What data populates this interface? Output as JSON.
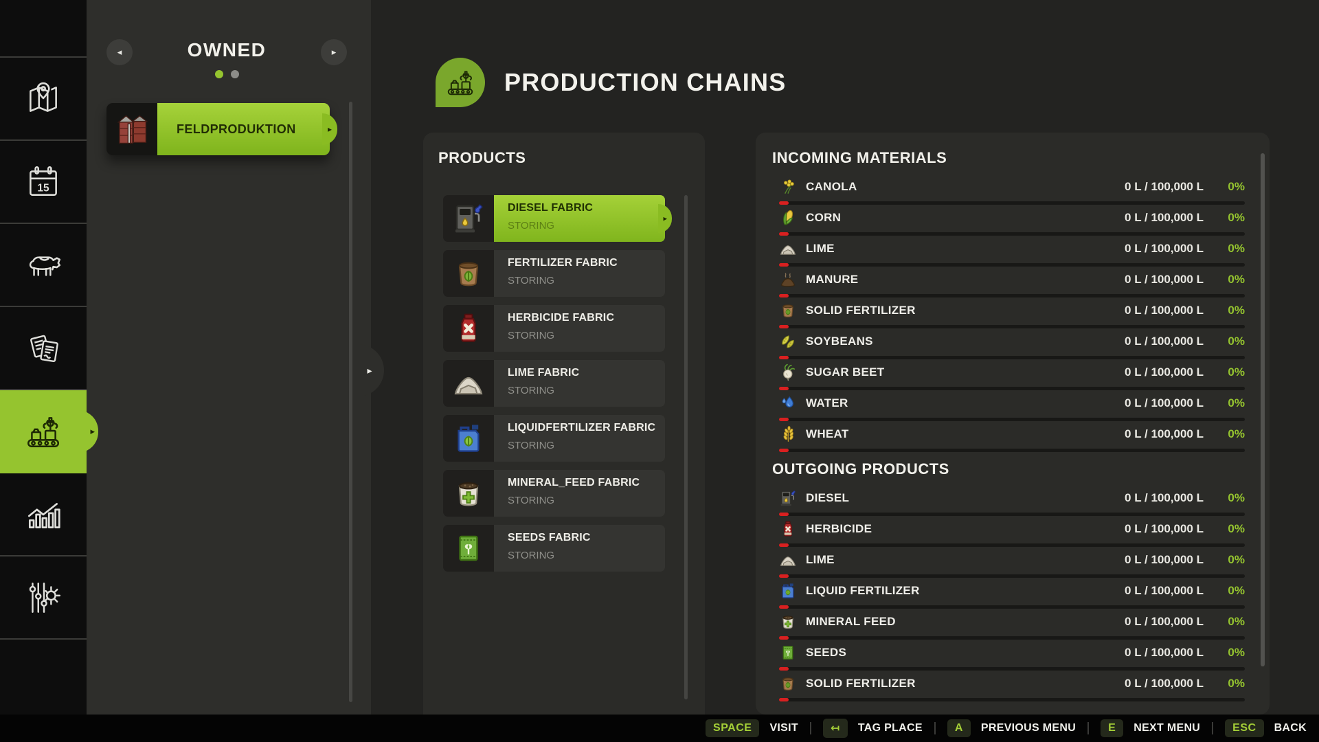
{
  "app": {
    "title": "PRODUCTION CHAINS"
  },
  "colors": {
    "accent": "#95c42f",
    "alert": "#d92020"
  },
  "sidebar": {
    "items": [
      {
        "name": "map",
        "icon": "map-icon"
      },
      {
        "name": "calendar",
        "icon": "calendar-icon",
        "day": "15"
      },
      {
        "name": "animals",
        "icon": "cow-icon"
      },
      {
        "name": "contracts",
        "icon": "documents-icon"
      },
      {
        "name": "production",
        "icon": "production-icon",
        "active": true
      },
      {
        "name": "statistics",
        "icon": "chart-icon"
      },
      {
        "name": "settings",
        "icon": "sliders-gear-icon"
      }
    ]
  },
  "owned_panel": {
    "title": "OWNED",
    "prev_arrow": "◂",
    "next_arrow": "▸",
    "pages": [
      {
        "active": true
      },
      {
        "active": false
      }
    ],
    "items": [
      {
        "label": "FELDPRODUKTION",
        "icon": "silo-icon",
        "arrow": "▸"
      }
    ]
  },
  "products_panel": {
    "heading": "PRODUCTS",
    "items": [
      {
        "label": "DIESEL FABRIC",
        "status": "STORING",
        "icon": "fuel-pump-icon",
        "selected": true,
        "arrow": "▸"
      },
      {
        "label": "FERTILIZER FABRIC",
        "status": "STORING",
        "icon": "fertilizer-bag-icon"
      },
      {
        "label": "HERBICIDE FABRIC",
        "status": "STORING",
        "icon": "herbicide-bottle-icon"
      },
      {
        "label": "LIME FABRIC",
        "status": "STORING",
        "icon": "lime-pile-icon"
      },
      {
        "label": "LIQUIDFERTILIZER FABRIC",
        "status": "STORING",
        "icon": "liquid-fertilizer-icon"
      },
      {
        "label": "MINERAL_FEED FABRIC",
        "status": "STORING",
        "icon": "mineral-feed-icon"
      },
      {
        "label": "SEEDS FABRIC",
        "status": "STORING",
        "icon": "seeds-packet-icon"
      }
    ]
  },
  "materials_panel": {
    "incoming": {
      "heading": "INCOMING MATERIALS",
      "rows": [
        {
          "label": "CANOLA",
          "icon": "canola-icon",
          "amount": "0 L / 100,000 L",
          "percent": "0%"
        },
        {
          "label": "CORN",
          "icon": "corn-icon",
          "amount": "0 L / 100,000 L",
          "percent": "0%"
        },
        {
          "label": "LIME",
          "icon": "lime-pile-icon",
          "amount": "0 L / 100,000 L",
          "percent": "0%"
        },
        {
          "label": "MANURE",
          "icon": "manure-icon",
          "amount": "0 L / 100,000 L",
          "percent": "0%"
        },
        {
          "label": "SOLID FERTILIZER",
          "icon": "fertilizer-bag-icon",
          "amount": "0 L / 100,000 L",
          "percent": "0%"
        },
        {
          "label": "SOYBEANS",
          "icon": "soybeans-icon",
          "amount": "0 L / 100,000 L",
          "percent": "0%"
        },
        {
          "label": "SUGAR BEET",
          "icon": "sugar-beet-icon",
          "amount": "0 L / 100,000 L",
          "percent": "0%"
        },
        {
          "label": "WATER",
          "icon": "water-drop-icon",
          "amount": "0 L / 100,000 L",
          "percent": "0%"
        },
        {
          "label": "WHEAT",
          "icon": "wheat-icon",
          "amount": "0 L / 100,000 L",
          "percent": "0%"
        }
      ]
    },
    "outgoing": {
      "heading": "OUTGOING PRODUCTS",
      "rows": [
        {
          "label": "DIESEL",
          "icon": "fuel-pump-icon",
          "amount": "0 L / 100,000 L",
          "percent": "0%"
        },
        {
          "label": "HERBICIDE",
          "icon": "herbicide-bottle-icon",
          "amount": "0 L / 100,000 L",
          "percent": "0%"
        },
        {
          "label": "LIME",
          "icon": "lime-pile-icon",
          "amount": "0 L / 100,000 L",
          "percent": "0%"
        },
        {
          "label": "LIQUID FERTILIZER",
          "icon": "liquid-fertilizer-icon",
          "amount": "0 L / 100,000 L",
          "percent": "0%"
        },
        {
          "label": "MINERAL FEED",
          "icon": "mineral-feed-icon",
          "amount": "0 L / 100,000 L",
          "percent": "0%"
        },
        {
          "label": "SEEDS",
          "icon": "seeds-packet-icon",
          "amount": "0 L / 100,000 L",
          "percent": "0%"
        },
        {
          "label": "SOLID FERTILIZER",
          "icon": "fertilizer-bag-icon",
          "amount": "0 L / 100,000 L",
          "percent": "0%"
        }
      ]
    }
  },
  "bottom_bar": {
    "hints": [
      {
        "key": "SPACE",
        "label": "VISIT"
      },
      {
        "key": "↤",
        "label": "TAG PLACE"
      },
      {
        "key": "A",
        "label": "PREVIOUS MENU"
      },
      {
        "key": "E",
        "label": "NEXT MENU"
      },
      {
        "key": "ESC",
        "label": "BACK"
      }
    ]
  }
}
